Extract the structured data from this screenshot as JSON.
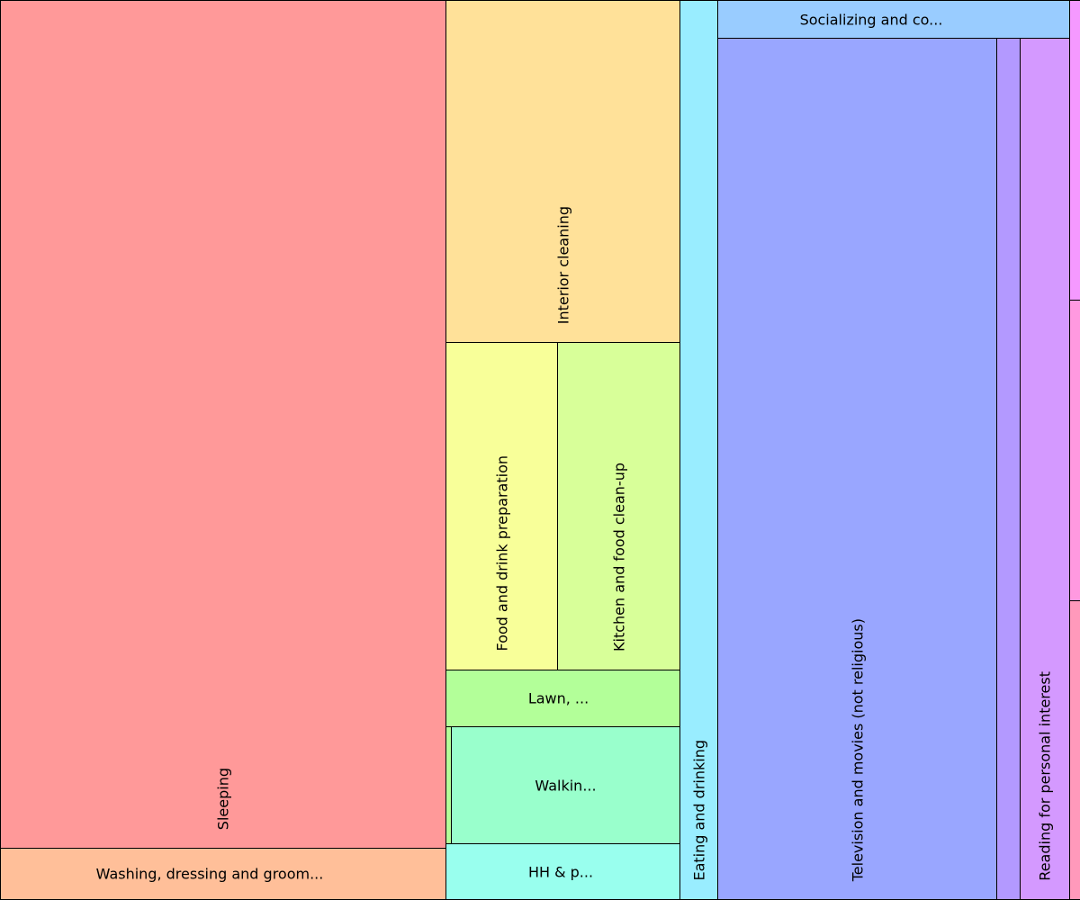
{
  "chart_data": {
    "type": "treemap",
    "unit": "relative share (area), scaled to hours per day",
    "tiles": [
      {
        "label": "Sleeping",
        "value": 9.33,
        "color": "#ff9999"
      },
      {
        "label": "Washing, dressing and groom...",
        "value": 0.57,
        "color": "#ffbf99"
      },
      {
        "label": "Interior cleaning",
        "value": 1.98,
        "color": "#ffe199"
      },
      {
        "label": "Food and drink preparation",
        "value": 0.9,
        "color": "#f8ff99"
      },
      {
        "label": "Kitchen and food clean-up",
        "value": 0.99,
        "color": "#d8ff99"
      },
      {
        "label": "Lawn, ...",
        "value": 0.33,
        "color": "#b3ff99"
      },
      {
        "label": "",
        "value": 0.016,
        "color": "#b3ff99"
      },
      {
        "label": "Walkin...",
        "value": 0.66,
        "color": "#99ffcc"
      },
      {
        "label": "HH & p...",
        "value": 0.33,
        "color": "#99ffee"
      },
      {
        "label": "Eating and drinking",
        "value": 0.84,
        "color": "#99edff"
      },
      {
        "label": "Socializing and co...",
        "value": 0.33,
        "color": "#99ccff"
      },
      {
        "label": "Television and movies (not religious)",
        "value": 5.94,
        "color": "#99a6ff"
      },
      {
        "label": "",
        "value": 0.5,
        "color": "#b399ff"
      },
      {
        "label": "Reading for personal interest",
        "value": 1.05,
        "color": "#d499ff"
      },
      {
        "label": "",
        "value": 0.08,
        "color": "#f599ff"
      },
      {
        "label": "",
        "value": 0.08,
        "color": "#ff99e0"
      },
      {
        "label": "",
        "value": 0.08,
        "color": "#ff99bb"
      }
    ]
  }
}
